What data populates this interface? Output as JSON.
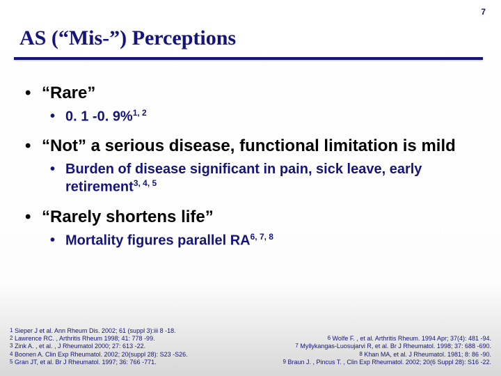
{
  "slide_number": "7",
  "title": "AS (“Mis-”) Perceptions",
  "bullets": {
    "b1": "“Rare”",
    "b1a_pre": "0. 1 -0. 9%",
    "b1a_sup": "1, 2",
    "b2": "“Not” a serious disease, functional limitation is mild",
    "b2a_pre": "Burden of disease significant in pain, sick leave, early retirement",
    "b2a_sup": "3, 4, 5",
    "b3": "“Rarely shortens life”",
    "b3a_pre": "Mortality figures parallel RA",
    "b3a_sup": "6, 7, 8"
  },
  "refs": {
    "left": {
      "r1": "Sieper J et al. Ann Rheum Dis. 2002; 61 (suppl 3):iii 8 -18.",
      "r2": "Lawrence RC. , Arthritis Rheum 1998; 41: 778 -99.",
      "r3": "Zink A. , et al. , J Rheumatol 2000; 27: 613 -22.",
      "r4": "Boonen A. Clin Exp Rheumatol. 2002; 20(suppl 28): S23 -S26.",
      "r5": "Gran JT, et al. Br J Rheumatol. 1997; 36: 766 -771."
    },
    "right": {
      "r6": "Wolfe F. , et al. Arthritis Rheum. 1994 Apr; 37(4): 481 -94.",
      "r7": "Myllykangas-Luosujarvi R, et al. Br J Rheumatol. 1998; 37: 688 -690.",
      "r8": "Khan MA, et al. J Rheumatol. 1981; 8: 86 -90.",
      "r9": "Braun J. , Pincus T. , Clin Exp Rheumatol. 2002; 20(6 Suppl 28): S16 -22."
    }
  },
  "colors": {
    "accent": "#14147a",
    "text": "#000000",
    "bg_top": "#ffffff",
    "bg_bottom": "#d8d8d8"
  },
  "typography": {
    "title_family": "Times New Roman",
    "body_family": "Arial",
    "title_size_pt": 30,
    "level1_size_pt": 24,
    "level2_size_pt": 20,
    "refs_size_pt": 9
  }
}
